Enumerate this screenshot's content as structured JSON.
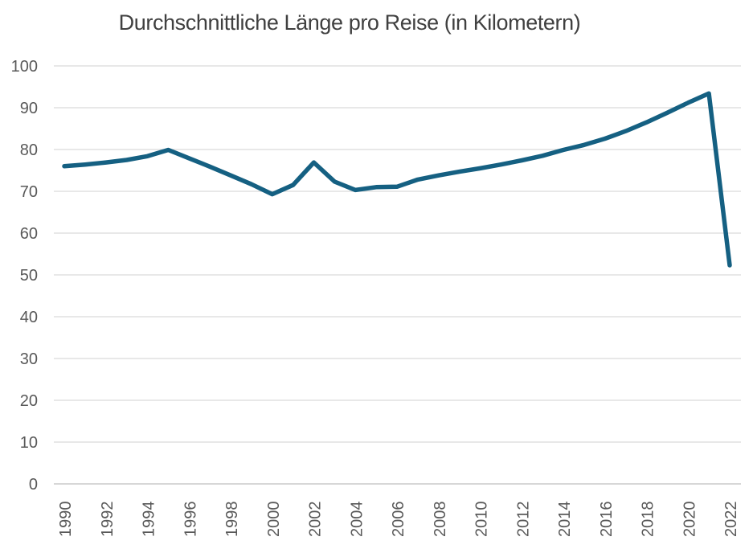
{
  "chart_data": {
    "type": "line",
    "title": "Durchschnittliche Länge pro Reise (in Kilometern)",
    "x": [
      1990,
      1991,
      1992,
      1993,
      1994,
      1995,
      1996,
      1997,
      1998,
      1999,
      2000,
      2001,
      2002,
      2003,
      2004,
      2005,
      2006,
      2007,
      2008,
      2009,
      2010,
      2011,
      2012,
      2013,
      2014,
      2015,
      2016,
      2017,
      2018,
      2019,
      2020,
      2021,
      2022
    ],
    "series": [
      {
        "values": [
          76.0,
          76.4,
          76.9,
          77.5,
          78.4,
          79.9,
          77.9,
          75.9,
          73.8,
          71.7,
          69.3,
          71.5,
          76.9,
          72.3,
          70.3,
          71.0,
          71.1,
          72.8,
          73.8,
          74.7,
          75.5,
          76.4,
          77.4,
          78.5,
          79.9,
          81.1,
          82.6,
          84.4,
          86.5,
          88.8,
          91.2,
          93.4,
          52.3
        ]
      }
    ],
    "xticks": [
      1990,
      1992,
      1994,
      1996,
      1998,
      2000,
      2002,
      2004,
      2006,
      2008,
      2010,
      2012,
      2014,
      2016,
      2018,
      2020,
      2022
    ],
    "yticks": [
      0,
      10,
      20,
      30,
      40,
      50,
      60,
      70,
      80,
      90,
      100
    ],
    "ylim": [
      0,
      100
    ],
    "xlabel": "",
    "ylabel": "",
    "grid": true,
    "legend": "none",
    "colors": {
      "line": "#156082",
      "gridline": "#d9d9d9",
      "axis_line": "#bfbfbf",
      "tick_label": "#595959",
      "title": "#404040",
      "background": "#ffffff"
    }
  }
}
